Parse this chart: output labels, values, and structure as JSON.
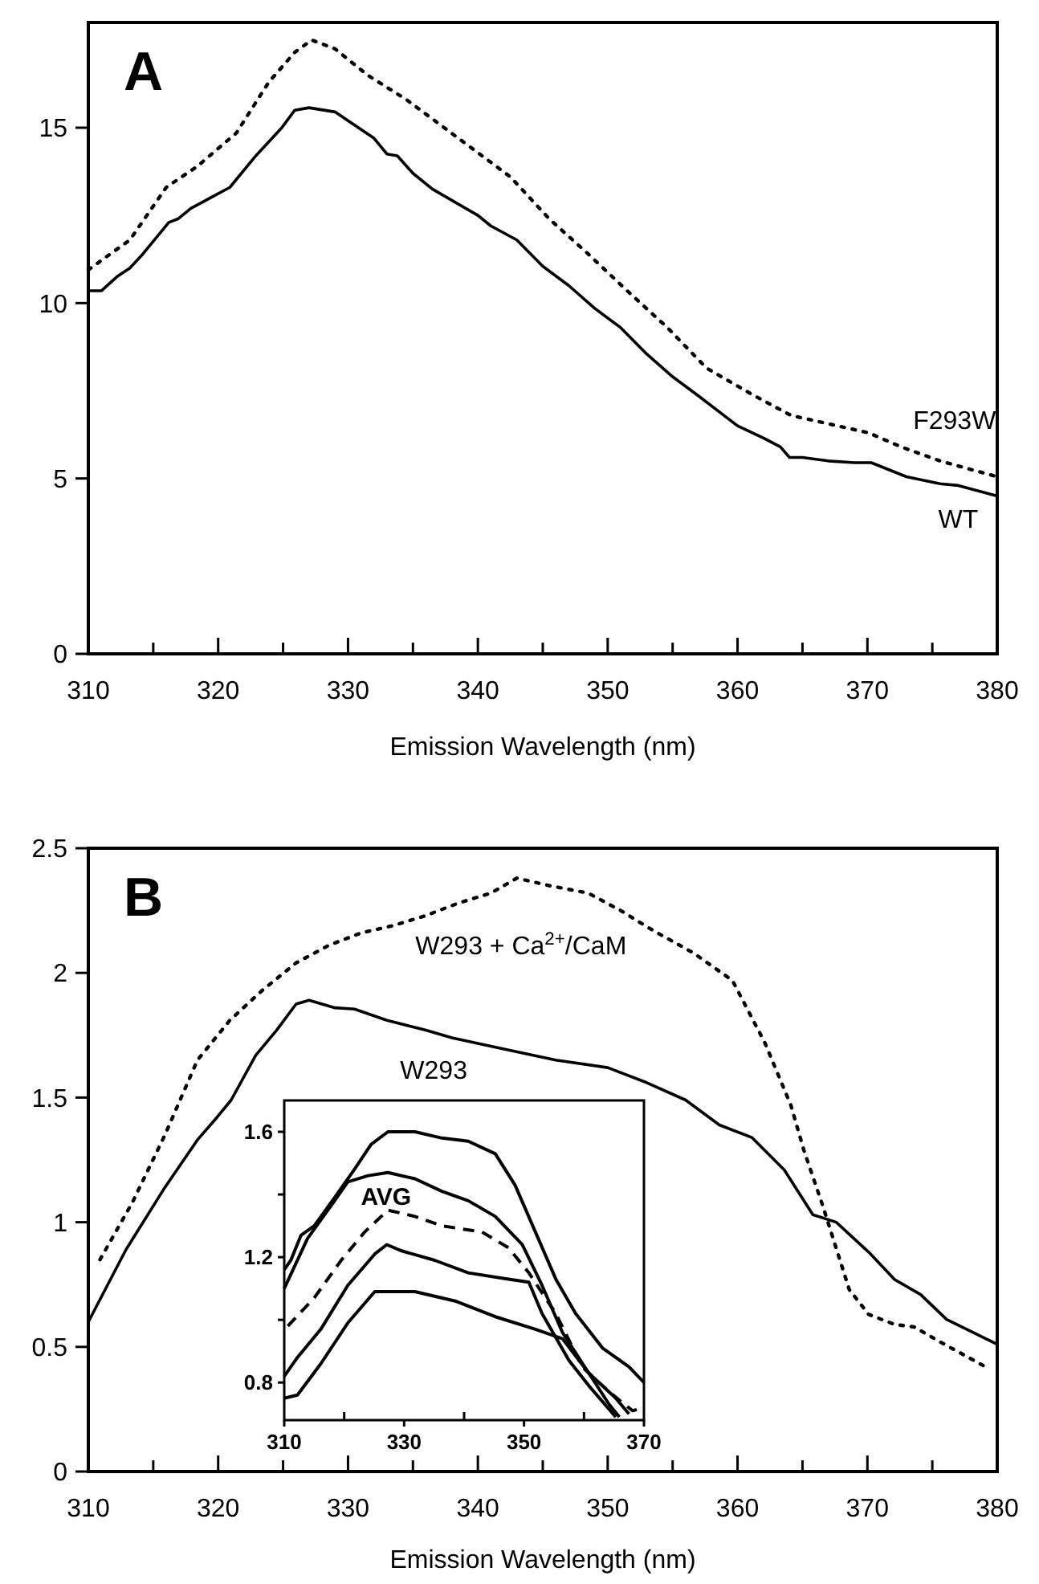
{
  "chart_data": [
    {
      "type": "line",
      "annotations": [
        "A"
      ],
      "xlabel": "Emission Wavelength (nm)",
      "xlim": [
        310,
        380
      ],
      "xticks": [
        310,
        {
          "value": 315,
          "label": null
        },
        320,
        {
          "value": 325,
          "label": null
        },
        330,
        {
          "value": 335,
          "label": null
        },
        340,
        {
          "value": 345,
          "label": null
        },
        350,
        {
          "value": 355,
          "label": null
        },
        360,
        {
          "value": 365,
          "label": null
        },
        370,
        {
          "value": 375,
          "label": null
        },
        380
      ],
      "ylim": [
        0,
        18
      ],
      "yticks": [
        0,
        5,
        10,
        15
      ],
      "grid": false,
      "marker": "none",
      "series": [
        {
          "name": "F293W",
          "color": "#000000",
          "line_style": "dotted",
          "x": [
            310,
            313.2,
            316,
            318.4,
            321.4,
            323.9,
            325.9,
            327.2,
            329,
            331.5,
            334.5,
            338.5,
            342.5,
            345.5,
            348.5,
            351.5,
            354.6,
            357.6,
            361.1,
            364.1,
            367.1,
            370.1,
            372.6,
            375.6,
            380
          ],
          "values": [
            10.95,
            11.8,
            13.3,
            13.9,
            14.85,
            16.3,
            17.15,
            17.5,
            17.25,
            16.5,
            15.8,
            14.7,
            13.6,
            12.4,
            11.4,
            10.35,
            9.3,
            8.15,
            7.4,
            6.8,
            6.55,
            6.3,
            5.9,
            5.5,
            5.05
          ]
        },
        {
          "name": "WT",
          "color": "#000000",
          "line_style": "solid",
          "x": [
            310,
            311,
            312.2,
            313.2,
            314.2,
            316.2,
            316.9,
            317.9,
            320.9,
            322.9,
            324.9,
            325.9,
            327,
            329,
            330,
            332,
            333,
            333.8,
            335,
            336.5,
            340,
            341,
            343,
            345,
            347,
            349,
            351,
            353,
            355,
            357,
            360,
            362,
            363.3,
            364,
            365,
            367,
            369,
            370.3,
            373,
            375.6,
            377,
            380
          ],
          "values": [
            10.35,
            10.35,
            10.75,
            11,
            11.4,
            12.3,
            12.4,
            12.7,
            13.3,
            14.2,
            15,
            15.5,
            15.57,
            15.45,
            15.2,
            14.7,
            14.25,
            14.2,
            13.7,
            13.25,
            12.5,
            12.2,
            11.8,
            11.05,
            10.5,
            9.85,
            9.3,
            8.55,
            7.9,
            7.35,
            6.5,
            6.15,
            5.9,
            5.6,
            5.6,
            5.5,
            5.45,
            5.45,
            5.05,
            4.85,
            4.8,
            4.5
          ]
        }
      ]
    },
    {
      "type": "line",
      "annotations": [
        "B"
      ],
      "xlabel": "Emission Wavelength (nm)",
      "xlim": [
        310,
        380
      ],
      "xticks": [
        310,
        {
          "value": 315,
          "label": null
        },
        320,
        {
          "value": 325,
          "label": null
        },
        330,
        {
          "value": 335,
          "label": null
        },
        340,
        {
          "value": 345,
          "label": null
        },
        350,
        {
          "value": 355,
          "label": null
        },
        360,
        {
          "value": 365,
          "label": null
        },
        370,
        {
          "value": 375,
          "label": null
        },
        380
      ],
      "ylim": [
        0,
        2.5
      ],
      "yticks": [
        0,
        0.5,
        1,
        1.5,
        2,
        2.5
      ],
      "grid": false,
      "marker": "none",
      "series": [
        {
          "name": "W293 + Ca$^{2+}$/CaM",
          "color": "#000000",
          "line_style": "dotted",
          "x": [
            310.9,
            313.4,
            315.9,
            318.4,
            320.9,
            323.4,
            326,
            328.5,
            331,
            333.5,
            336,
            338.5,
            341,
            343,
            345.5,
            348.5,
            351,
            353.5,
            356.6,
            359.6,
            362.1,
            364.1,
            365.1,
            366.6,
            368.6,
            370.1,
            372.1,
            373.6,
            375.6,
            379.1
          ],
          "values": [
            0.85,
            1.08,
            1.35,
            1.65,
            1.81,
            1.93,
            2.04,
            2.11,
            2.16,
            2.19,
            2.23,
            2.28,
            2.32,
            2.38,
            2.35,
            2.32,
            2.25,
            2.17,
            2.08,
            1.97,
            1.72,
            1.47,
            1.29,
            1.06,
            0.73,
            0.63,
            0.59,
            0.58,
            0.52,
            0.42
          ]
        },
        {
          "name": "W293",
          "color": "#000000",
          "line_style": "solid",
          "x": [
            310,
            312.9,
            315.9,
            318.4,
            319.9,
            321,
            322.9,
            324.5,
            326,
            327,
            328,
            329,
            330.5,
            333,
            336,
            338,
            341.5,
            346,
            350,
            353,
            356,
            358.6,
            361.1,
            363.6,
            365.8,
            367.6,
            370.1,
            372.1,
            374.1,
            376.1,
            380
          ],
          "values": [
            0.6,
            0.89,
            1.14,
            1.33,
            1.42,
            1.49,
            1.67,
            1.77,
            1.875,
            1.89,
            1.875,
            1.86,
            1.855,
            1.81,
            1.77,
            1.74,
            1.7,
            1.65,
            1.62,
            1.56,
            1.49,
            1.39,
            1.34,
            1.21,
            1.03,
            1,
            0.88,
            0.77,
            0.71,
            0.61,
            0.51
          ]
        }
      ]
    },
    {
      "type": "line",
      "xlim": [
        310,
        370
      ],
      "xticks": [
        310,
        {
          "value": 320,
          "label": null
        },
        330,
        {
          "value": 340,
          "label": null
        },
        350,
        {
          "value": 360,
          "label": null
        },
        370
      ],
      "ylim": [
        0.68,
        1.7
      ],
      "yticks": [
        0.8,
        {
          "value": 1,
          "label": null
        },
        1.2,
        {
          "value": 1.4,
          "label": null
        },
        1.6
      ],
      "grid": false,
      "marker": "none",
      "series": [
        {
          "color": "#000000",
          "line_style": "solid",
          "x": [
            310,
            311.1,
            312.8,
            315,
            318.4,
            321.7,
            324.5,
            327.3,
            331.8,
            336.3,
            340.7,
            345.2,
            348.5,
            351.9,
            355.3,
            358.6,
            363.1,
            367.5,
            370
          ],
          "values": [
            1.16,
            1.19,
            1.27,
            1.3,
            1.39,
            1.48,
            1.56,
            1.6,
            1.6,
            1.58,
            1.57,
            1.53,
            1.43,
            1.28,
            1.13,
            1.02,
            0.91,
            0.85,
            0.8
          ]
        },
        {
          "color": "#000000",
          "line_style": "solid",
          "x": [
            310,
            313.9,
            318.4,
            320.6,
            324,
            327.3,
            331.8,
            336.3,
            340.7,
            345.2,
            349.7,
            353,
            356.4,
            360.8,
            365.3,
            367.5
          ],
          "values": [
            1.1,
            1.26,
            1.38,
            1.44,
            1.46,
            1.47,
            1.45,
            1.41,
            1.38,
            1.33,
            1.24,
            1.11,
            0.96,
            0.83,
            0.75,
            0.7
          ]
        },
        {
          "name": "AVG",
          "color": "#000000",
          "line_style": "dashed",
          "x": [
            310.6,
            315,
            319.5,
            323.4,
            327.3,
            331.8,
            336.3,
            343,
            347.4,
            350.8,
            355.3,
            359.7,
            364.2,
            368.1,
            370
          ],
          "values": [
            0.98,
            1.07,
            1.19,
            1.28,
            1.35,
            1.33,
            1.3,
            1.28,
            1.23,
            1.15,
            1.02,
            0.85,
            0.77,
            0.71,
            0.72
          ]
        },
        {
          "color": "#000000",
          "line_style": "solid",
          "x": [
            310,
            312.2,
            316.1,
            320.6,
            325.1,
            327.1,
            329.6,
            335.1,
            340.7,
            347.4,
            350.8,
            353,
            357.5,
            360.8,
            365.3
          ],
          "values": [
            0.82,
            0.88,
            0.97,
            1.11,
            1.21,
            1.24,
            1.22,
            1.19,
            1.15,
            1.13,
            1.12,
            1.02,
            0.87,
            0.79,
            0.69
          ]
        },
        {
          "color": "#000000",
          "line_style": "solid",
          "x": [
            310,
            312.2,
            316.1,
            320.6,
            325.1,
            327.3,
            331.8,
            338.5,
            345.2,
            351.9,
            356.4,
            360.8,
            364.2,
            365.9
          ],
          "values": [
            0.75,
            0.76,
            0.86,
            0.99,
            1.09,
            1.09,
            1.09,
            1.06,
            1.01,
            0.97,
            0.94,
            0.83,
            0.73,
            0.69
          ]
        }
      ]
    }
  ]
}
